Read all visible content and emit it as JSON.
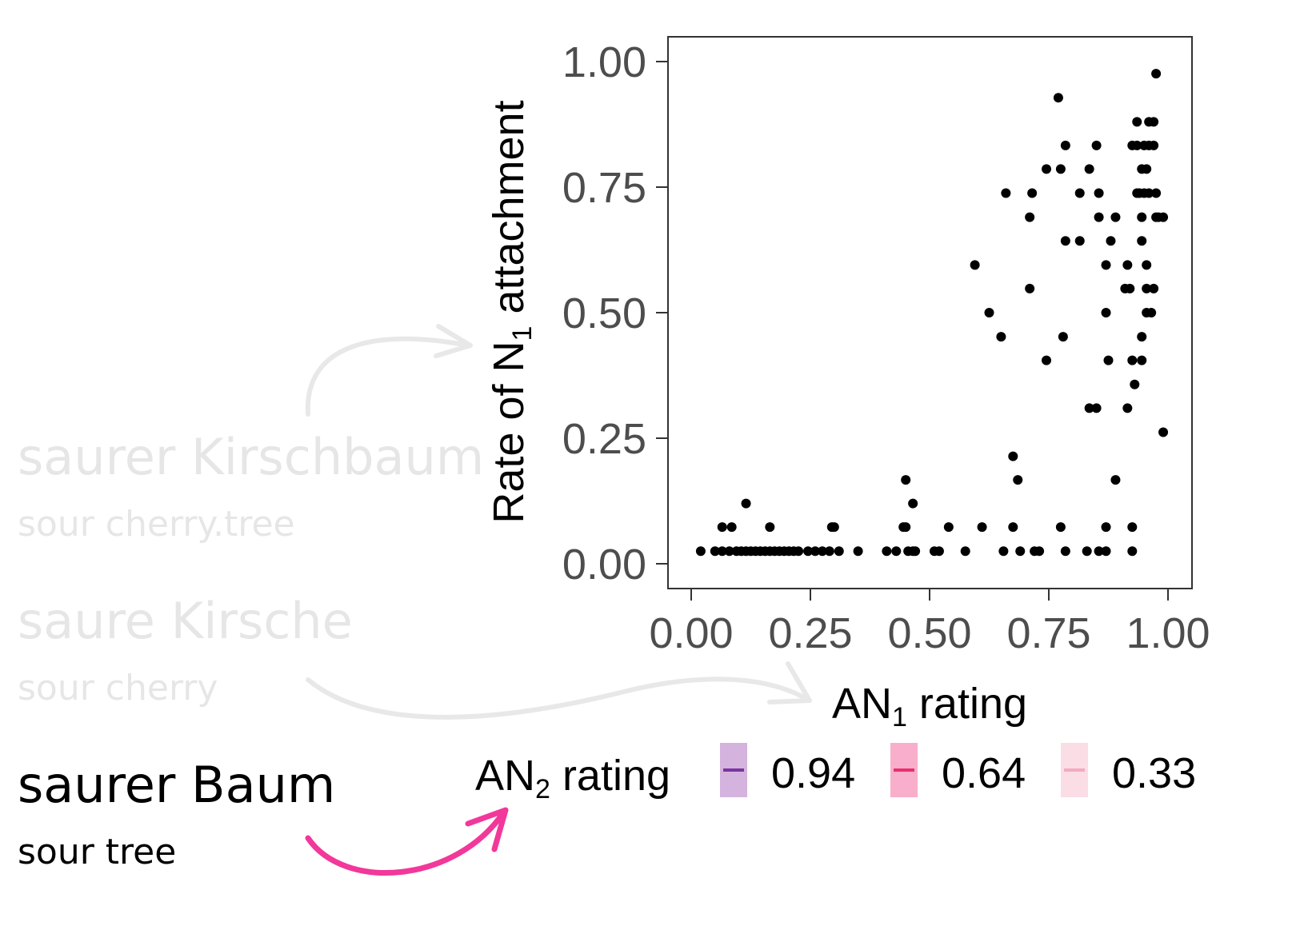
{
  "phrases": [
    {
      "german": "saurer Kirschbaum",
      "english": "sour cherry.tree",
      "state": "faded"
    },
    {
      "german": "saure Kirsche",
      "english": "sour cherry",
      "state": "faded"
    },
    {
      "german": "saurer Baum",
      "english": "sour tree",
      "state": "active"
    }
  ],
  "colors": {
    "faded_text": "#e6e6e6",
    "faded_arrow": "#e8e8e8",
    "active_arrow": "#f2389a",
    "points": "#000000",
    "axis_text": "#4d4d4d"
  },
  "chart_data": {
    "type": "scatter",
    "xlabel": {
      "base": "AN",
      "sub": "1",
      "rest": " rating"
    },
    "ylabel": {
      "base": "Rate of N",
      "sub": "1",
      "rest": " attachment"
    },
    "xlim": [
      0,
      1
    ],
    "ylim": [
      0,
      1
    ],
    "xticks": [
      "0.00",
      "0.25",
      "0.50",
      "0.75",
      "1.00"
    ],
    "yticks": [
      "0.00",
      "0.25",
      "0.50",
      "0.75",
      "1.00"
    ],
    "grid": false,
    "legend": {
      "title": {
        "base": "AN",
        "sub": "2",
        "rest": " rating"
      },
      "position": "bottom",
      "items": [
        {
          "label": "0.94",
          "fill": "#d4b3de",
          "line": "#7a35a0"
        },
        {
          "label": "0.64",
          "fill": "#f9aecb",
          "line": "#e8306f"
        },
        {
          "label": "0.33",
          "fill": "#fbdde6",
          "line": "#f4a9c1"
        }
      ]
    },
    "points": [
      [
        0.02,
        0.025
      ],
      [
        0.05,
        0.025
      ],
      [
        0.065,
        0.025
      ],
      [
        0.08,
        0.025
      ],
      [
        0.095,
        0.025
      ],
      [
        0.105,
        0.025
      ],
      [
        0.115,
        0.025
      ],
      [
        0.125,
        0.025
      ],
      [
        0.135,
        0.025
      ],
      [
        0.145,
        0.025
      ],
      [
        0.155,
        0.025
      ],
      [
        0.165,
        0.025
      ],
      [
        0.175,
        0.025
      ],
      [
        0.185,
        0.025
      ],
      [
        0.195,
        0.025
      ],
      [
        0.205,
        0.025
      ],
      [
        0.215,
        0.025
      ],
      [
        0.225,
        0.025
      ],
      [
        0.245,
        0.025
      ],
      [
        0.26,
        0.025
      ],
      [
        0.275,
        0.025
      ],
      [
        0.29,
        0.025
      ],
      [
        0.31,
        0.025
      ],
      [
        0.35,
        0.025
      ],
      [
        0.41,
        0.025
      ],
      [
        0.43,
        0.025
      ],
      [
        0.455,
        0.025
      ],
      [
        0.465,
        0.025
      ],
      [
        0.47,
        0.025
      ],
      [
        0.51,
        0.025
      ],
      [
        0.52,
        0.025
      ],
      [
        0.575,
        0.025
      ],
      [
        0.655,
        0.025
      ],
      [
        0.69,
        0.025
      ],
      [
        0.72,
        0.025
      ],
      [
        0.73,
        0.025
      ],
      [
        0.785,
        0.025
      ],
      [
        0.83,
        0.025
      ],
      [
        0.855,
        0.025
      ],
      [
        0.87,
        0.025
      ],
      [
        0.925,
        0.025
      ],
      [
        0.065,
        0.073
      ],
      [
        0.085,
        0.073
      ],
      [
        0.165,
        0.073
      ],
      [
        0.295,
        0.073
      ],
      [
        0.3,
        0.073
      ],
      [
        0.445,
        0.073
      ],
      [
        0.45,
        0.073
      ],
      [
        0.54,
        0.073
      ],
      [
        0.61,
        0.073
      ],
      [
        0.675,
        0.073
      ],
      [
        0.775,
        0.073
      ],
      [
        0.87,
        0.073
      ],
      [
        0.925,
        0.073
      ],
      [
        0.115,
        0.12
      ],
      [
        0.465,
        0.12
      ],
      [
        0.45,
        0.167
      ],
      [
        0.685,
        0.167
      ],
      [
        0.89,
        0.167
      ],
      [
        0.675,
        0.214
      ],
      [
        0.99,
        0.262
      ],
      [
        0.835,
        0.31
      ],
      [
        0.85,
        0.31
      ],
      [
        0.915,
        0.31
      ],
      [
        0.93,
        0.357
      ],
      [
        0.745,
        0.405
      ],
      [
        0.875,
        0.405
      ],
      [
        0.925,
        0.405
      ],
      [
        0.945,
        0.405
      ],
      [
        0.65,
        0.452
      ],
      [
        0.78,
        0.452
      ],
      [
        0.945,
        0.452
      ],
      [
        0.625,
        0.5
      ],
      [
        0.87,
        0.5
      ],
      [
        0.955,
        0.5
      ],
      [
        0.965,
        0.5
      ],
      [
        0.71,
        0.548
      ],
      [
        0.91,
        0.548
      ],
      [
        0.92,
        0.548
      ],
      [
        0.955,
        0.548
      ],
      [
        0.97,
        0.548
      ],
      [
        0.595,
        0.595
      ],
      [
        0.87,
        0.595
      ],
      [
        0.915,
        0.595
      ],
      [
        0.955,
        0.595
      ],
      [
        0.785,
        0.643
      ],
      [
        0.815,
        0.643
      ],
      [
        0.88,
        0.643
      ],
      [
        0.945,
        0.643
      ],
      [
        0.71,
        0.69
      ],
      [
        0.855,
        0.69
      ],
      [
        0.89,
        0.69
      ],
      [
        0.945,
        0.69
      ],
      [
        0.975,
        0.69
      ],
      [
        0.98,
        0.69
      ],
      [
        0.99,
        0.69
      ],
      [
        0.66,
        0.738
      ],
      [
        0.715,
        0.738
      ],
      [
        0.815,
        0.738
      ],
      [
        0.855,
        0.738
      ],
      [
        0.935,
        0.738
      ],
      [
        0.94,
        0.738
      ],
      [
        0.95,
        0.738
      ],
      [
        0.96,
        0.738
      ],
      [
        0.975,
        0.738
      ],
      [
        0.745,
        0.786
      ],
      [
        0.775,
        0.786
      ],
      [
        0.835,
        0.786
      ],
      [
        0.945,
        0.786
      ],
      [
        0.955,
        0.786
      ],
      [
        0.785,
        0.833
      ],
      [
        0.85,
        0.833
      ],
      [
        0.925,
        0.833
      ],
      [
        0.935,
        0.833
      ],
      [
        0.95,
        0.833
      ],
      [
        0.96,
        0.833
      ],
      [
        0.97,
        0.833
      ],
      [
        0.935,
        0.88
      ],
      [
        0.96,
        0.88
      ],
      [
        0.97,
        0.88
      ],
      [
        0.77,
        0.928
      ],
      [
        0.975,
        0.976
      ]
    ]
  }
}
